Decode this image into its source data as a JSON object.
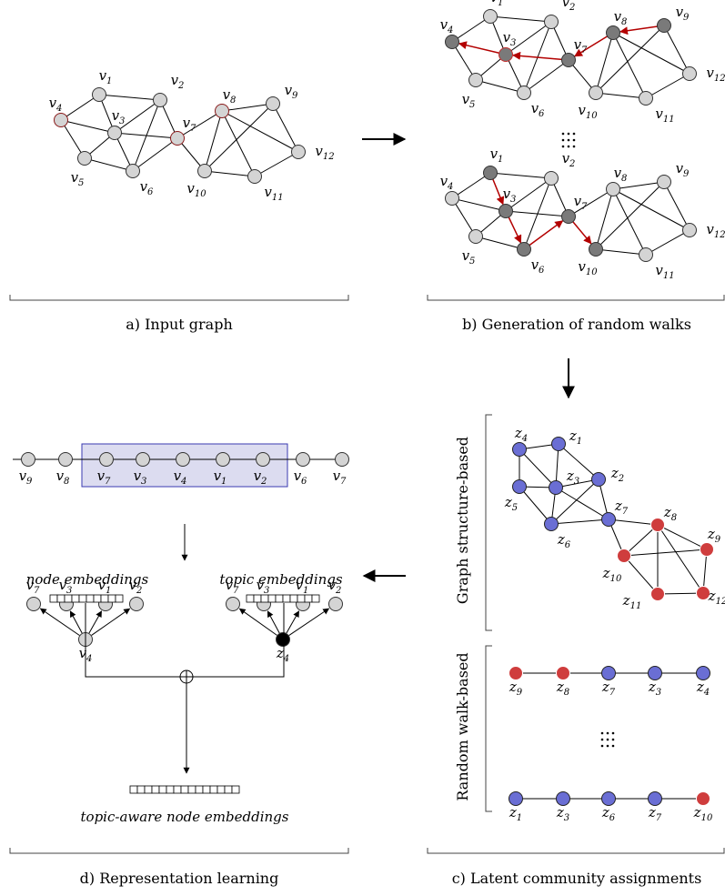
{
  "captions": {
    "a": "a) Input graph",
    "b": "b) Generation of random walks",
    "c": "c) Latent community assignments",
    "d": "d) Representation learning"
  },
  "section_c": {
    "graph_based_title": "Graph structure-based",
    "walk_based_title": "Random walk-based"
  },
  "section_d": {
    "node_embeddings_label": "node embeddings",
    "topic_embeddings_label": "topic embeddings",
    "topic_aware_label": "topic-aware node embeddings"
  },
  "colors": {
    "node_light": "#d4d4d4",
    "node_dark": "#7a7a7a",
    "walk_arrow": "#b30000",
    "community_blue": "#6a6ed4",
    "community_red": "#cf3d3d",
    "highlight_box": "#dcdcf0",
    "highlight_border": "#3a3ab0"
  },
  "input_graph": {
    "nodes": [
      {
        "id": "v4",
        "label": "v4",
        "sub": "4"
      },
      {
        "id": "v1",
        "label": "v1",
        "sub": "1"
      },
      {
        "id": "v2",
        "label": "v2",
        "sub": "2"
      },
      {
        "id": "v3",
        "label": "v3",
        "sub": "3"
      },
      {
        "id": "v5",
        "label": "v5",
        "sub": "5"
      },
      {
        "id": "v6",
        "label": "v6",
        "sub": "6"
      },
      {
        "id": "v7",
        "label": "v7",
        "sub": "7"
      },
      {
        "id": "v8",
        "label": "v8",
        "sub": "8"
      },
      {
        "id": "v9",
        "label": "v9",
        "sub": "9"
      },
      {
        "id": "v10",
        "label": "v10",
        "sub": "10"
      },
      {
        "id": "v11",
        "label": "v11",
        "sub": "11"
      },
      {
        "id": "v12",
        "label": "v12",
        "sub": "12"
      }
    ],
    "edges": [
      [
        "v4",
        "v1"
      ],
      [
        "v4",
        "v3"
      ],
      [
        "v4",
        "v5"
      ],
      [
        "v1",
        "v3"
      ],
      [
        "v1",
        "v2"
      ],
      [
        "v2",
        "v3"
      ],
      [
        "v2",
        "v6"
      ],
      [
        "v2",
        "v7"
      ],
      [
        "v3",
        "v5"
      ],
      [
        "v3",
        "v6"
      ],
      [
        "v3",
        "v7"
      ],
      [
        "v5",
        "v6"
      ],
      [
        "v6",
        "v7"
      ],
      [
        "v7",
        "v8"
      ],
      [
        "v7",
        "v10"
      ],
      [
        "v8",
        "v9"
      ],
      [
        "v8",
        "v10"
      ],
      [
        "v8",
        "v11"
      ],
      [
        "v8",
        "v12"
      ],
      [
        "v9",
        "v10"
      ],
      [
        "v9",
        "v12"
      ],
      [
        "v10",
        "v11"
      ],
      [
        "v11",
        "v12"
      ]
    ]
  },
  "walks": [
    [
      "v9",
      "v8",
      "v7",
      "v3",
      "v4"
    ],
    [
      "v1",
      "v3",
      "v6",
      "v7",
      "v10"
    ]
  ],
  "community_walks": [
    [
      {
        "sub": "9",
        "c": "red"
      },
      {
        "sub": "8",
        "c": "red"
      },
      {
        "sub": "7",
        "c": "blue"
      },
      {
        "sub": "3",
        "c": "blue"
      },
      {
        "sub": "4",
        "c": "blue"
      }
    ],
    [
      {
        "sub": "1",
        "c": "blue"
      },
      {
        "sub": "3",
        "c": "blue"
      },
      {
        "sub": "6",
        "c": "blue"
      },
      {
        "sub": "7",
        "c": "blue"
      },
      {
        "sub": "10",
        "c": "red"
      }
    ]
  ],
  "sequence_d": [
    "9",
    "8",
    "7",
    "3",
    "4",
    "1",
    "2",
    "6",
    "7"
  ],
  "node_emb_context": [
    "7",
    "3",
    "1",
    "2"
  ],
  "node_emb_center": "4",
  "topic_emb_context": [
    "7",
    "3",
    "1",
    "2"
  ],
  "topic_emb_center": "4"
}
